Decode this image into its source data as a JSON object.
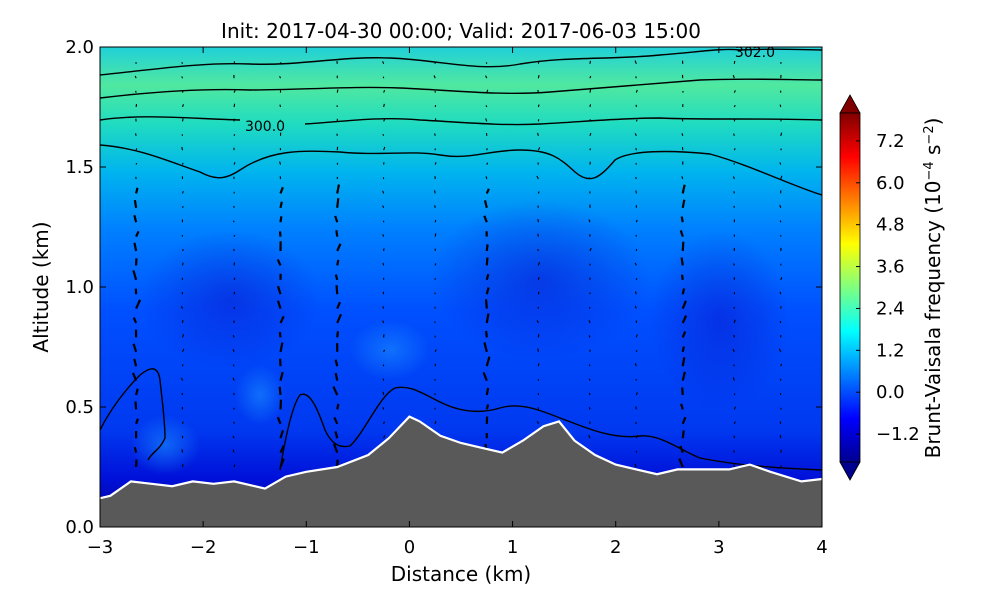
{
  "chart_data": {
    "type": "heatmap",
    "title": "Init: 2017-04-30 00:00; Valid: 2017-06-03 15:00",
    "xlabel": "Distance (km)",
    "ylabel": "Altitude (km)",
    "xlim": [
      -3,
      4
    ],
    "ylim": [
      0.0,
      2.0
    ],
    "x_ticks": [
      "−3",
      "−2",
      "−1",
      "0",
      "1",
      "2",
      "3",
      "4"
    ],
    "x_tick_values": [
      -3,
      -2,
      -1,
      0,
      1,
      2,
      3,
      4
    ],
    "y_ticks": [
      "0.0",
      "0.5",
      "1.0",
      "1.5",
      "2.0"
    ],
    "y_tick_values": [
      0.0,
      0.5,
      1.0,
      1.5,
      2.0
    ],
    "colorbar": {
      "label": "Brunt-Vaisala frequency (10⁻⁴ s⁻²)",
      "ticks": [
        "−1.2",
        "0.0",
        "1.2",
        "2.4",
        "3.6",
        "4.8",
        "6.0",
        "7.2"
      ],
      "tick_values": [
        -1.2,
        0.0,
        1.2,
        2.4,
        3.6,
        4.8,
        6.0,
        7.2
      ],
      "range": [
        -2.0,
        8.0
      ],
      "colormap": "jet",
      "extend": "both"
    },
    "contour_labels": [
      {
        "text": "300.0",
        "x": -1.4,
        "y": 1.67
      },
      {
        "text": "302.0",
        "x": 3.35,
        "y": 1.98
      }
    ],
    "terrain": {
      "x": [
        -3,
        -2.9,
        -2.7,
        -2.5,
        -2.3,
        -2.1,
        -1.9,
        -1.7,
        -1.4,
        -1.2,
        -1.0,
        -0.7,
        -0.4,
        -0.2,
        0.0,
        0.1,
        0.3,
        0.5,
        0.7,
        0.9,
        1.1,
        1.3,
        1.45,
        1.6,
        1.8,
        2.0,
        2.2,
        2.4,
        2.6,
        2.9,
        3.1,
        3.3,
        3.5,
        3.8,
        4.0
      ],
      "y": [
        0.12,
        0.13,
        0.19,
        0.18,
        0.17,
        0.19,
        0.18,
        0.19,
        0.16,
        0.21,
        0.23,
        0.25,
        0.3,
        0.37,
        0.46,
        0.44,
        0.38,
        0.35,
        0.33,
        0.31,
        0.36,
        0.42,
        0.44,
        0.36,
        0.3,
        0.26,
        0.24,
        0.22,
        0.24,
        0.24,
        0.24,
        0.26,
        0.23,
        0.19,
        0.2
      ],
      "fill_color": "#595959"
    }
  }
}
